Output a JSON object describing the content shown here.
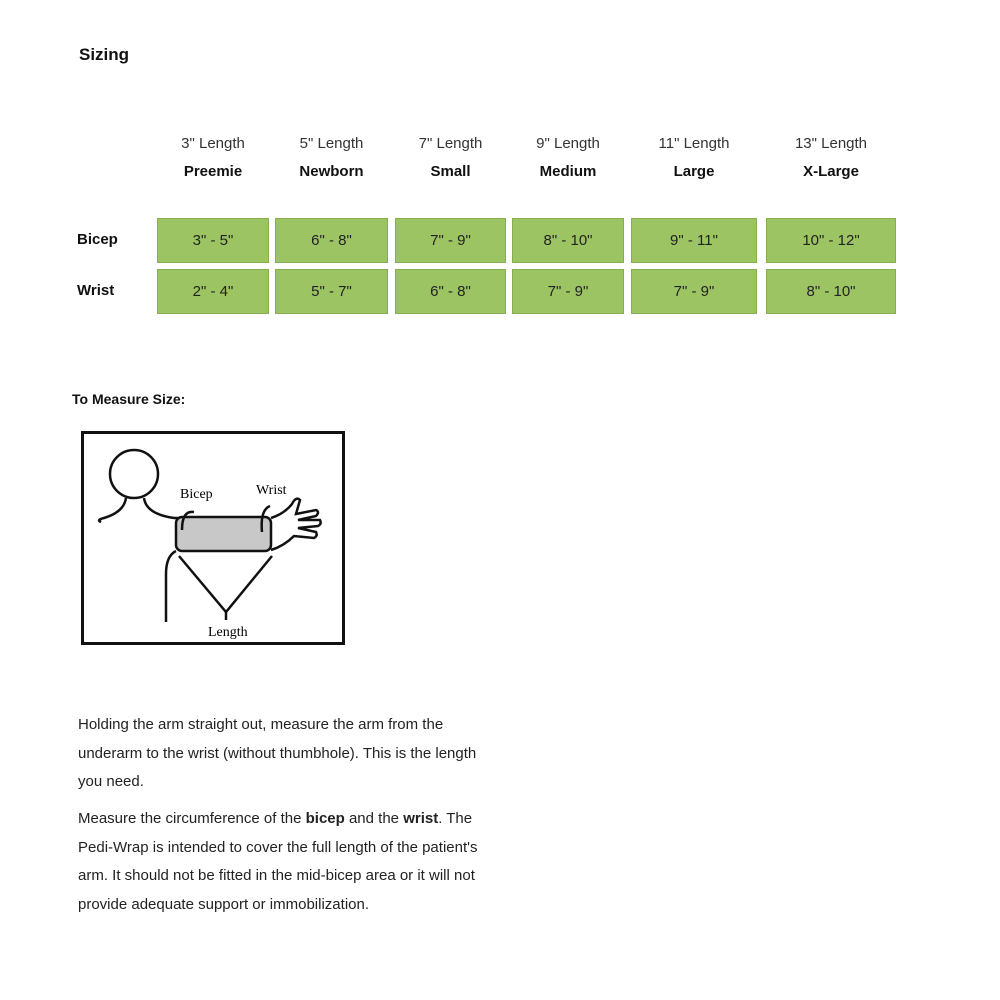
{
  "title": "Sizing",
  "columns": [
    {
      "length": "3\" Length",
      "size": "Preemie"
    },
    {
      "length": "5\" Length",
      "size": "Newborn"
    },
    {
      "length": "7\" Length",
      "size": "Small"
    },
    {
      "length": "9\" Length",
      "size": "Medium"
    },
    {
      "length": "11\" Length",
      "size": "Large"
    },
    {
      "length": "13\" Length",
      "size": "X-Large"
    }
  ],
  "rows": [
    {
      "label": "Bicep",
      "values": [
        "3\" - 5\"",
        "6\" - 8\"",
        "7\" - 9\"",
        "8\" - 10\"",
        "9\" - 11\"",
        "10\" - 12\""
      ]
    },
    {
      "label": "Wrist",
      "values": [
        "2\" - 4\"",
        "5\" - 7\"",
        "6\" - 8\"",
        "7\" - 9\"",
        "7\" - 9\"",
        "8\" - 10\""
      ]
    }
  ],
  "cell_color": "#9cc463",
  "measure_title": "To Measure Size:",
  "diagram_labels": {
    "bicep": "Bicep",
    "wrist": "Wrist",
    "length": "Length"
  },
  "para1": "Holding the arm straight out, measure the arm from the underarm to the wrist (without thumbhole). This is the length you need.",
  "para2": {
    "a": "Measure the circumference of the ",
    "b": "bicep",
    "c": " and the ",
    "d": "wrist",
    "e": ". The Pedi-Wrap is intended to cover the full length of the patient's arm. It should not be fitted in the mid-bicep area or it will not provide adequate support or immobilization."
  }
}
